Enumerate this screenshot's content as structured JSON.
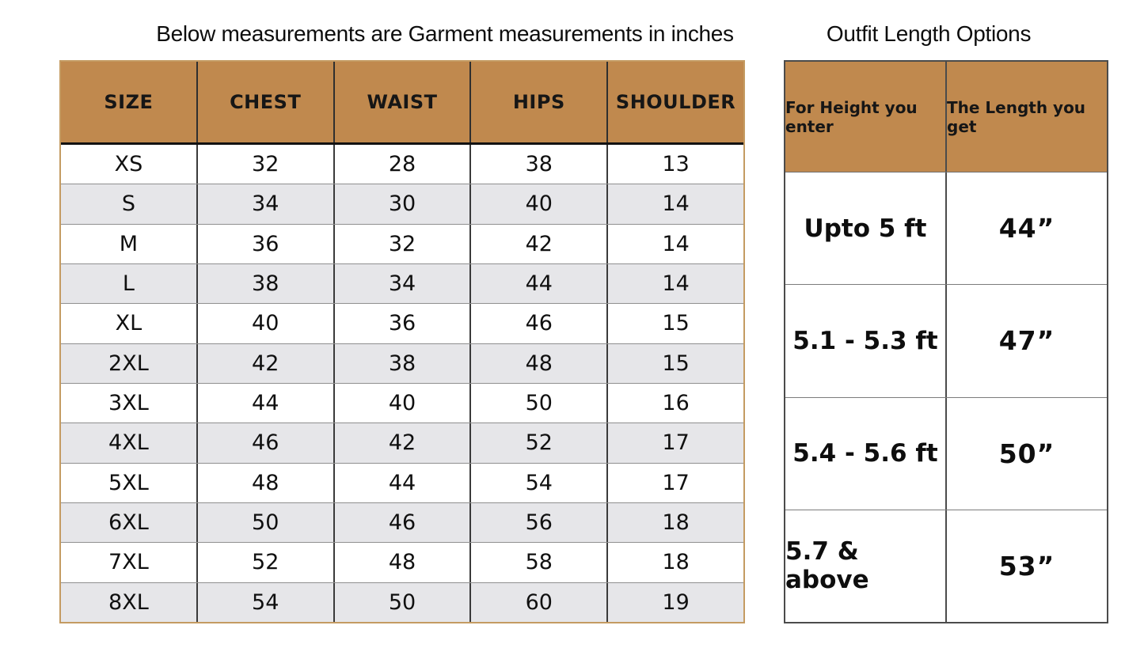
{
  "chart_data": [
    {
      "type": "table",
      "title": "Below measurements are Garment measurements in inches",
      "columns": [
        "SIZE",
        "CHEST",
        "WAIST",
        "HIPS",
        "SHOULDER"
      ],
      "rows": [
        [
          "XS",
          "32",
          "28",
          "38",
          "13"
        ],
        [
          "S",
          "34",
          "30",
          "40",
          "14"
        ],
        [
          "M",
          "36",
          "32",
          "42",
          "14"
        ],
        [
          "L",
          "38",
          "34",
          "44",
          "14"
        ],
        [
          "XL",
          "40",
          "36",
          "46",
          "15"
        ],
        [
          "2XL",
          "42",
          "38",
          "48",
          "15"
        ],
        [
          "3XL",
          "44",
          "40",
          "50",
          "16"
        ],
        [
          "4XL",
          "46",
          "42",
          "52",
          "17"
        ],
        [
          "5XL",
          "48",
          "44",
          "54",
          "17"
        ],
        [
          "6XL",
          "50",
          "46",
          "56",
          "18"
        ],
        [
          "7XL",
          "52",
          "48",
          "58",
          "18"
        ],
        [
          "8XL",
          "54",
          "50",
          "60",
          "19"
        ]
      ],
      "units": "inches",
      "layout": {
        "grid": true,
        "header_fill": "#c0894e",
        "stripe_fill": "#e6e6e9",
        "border_color": "#c49b62"
      }
    },
    {
      "type": "table",
      "title": "Outfit Length Options",
      "columns": [
        "For Height you enter",
        "The Length you get"
      ],
      "rows": [
        [
          "Upto 5 ft",
          "44”"
        ],
        [
          "5.1 - 5.3 ft",
          "47”"
        ],
        [
          "5.4 - 5.6 ft",
          "50”"
        ],
        [
          "5.7 & above",
          "53”"
        ]
      ],
      "layout": {
        "grid": true,
        "header_fill": "#c0894e",
        "border_color": "#4b4b4b"
      }
    }
  ],
  "colors": {
    "header_brown": "#c0894e",
    "stripe_gray": "#e6e6e9",
    "left_table_border_tan": "#c49b62",
    "right_table_border_gray": "#4b4b4b",
    "text": "#111111",
    "background": "#ffffff"
  }
}
